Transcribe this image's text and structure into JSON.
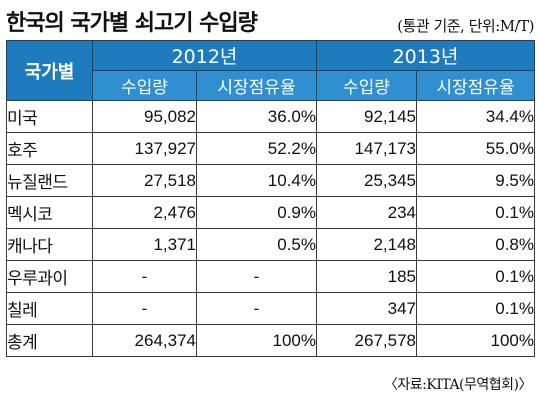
{
  "title": "한국의 국가별 쇠고기 수입량",
  "unit_note": "(통관 기준, 단위:M/T)",
  "header": {
    "country": "국가별",
    "year1": "2012년",
    "year2": "2013년",
    "import_volume": "수입량",
    "market_share": "시장점유율"
  },
  "rows": [
    {
      "country": "미국",
      "v2012": "95,082",
      "s2012": "36.0%",
      "v2013": "92,145",
      "s2013": "34.4%"
    },
    {
      "country": "호주",
      "v2012": "137,927",
      "s2012": "52.2%",
      "v2013": "147,173",
      "s2013": "55.0%"
    },
    {
      "country": "뉴질랜드",
      "v2012": "27,518",
      "s2012": "10.4%",
      "v2013": "25,345",
      "s2013": "9.5%"
    },
    {
      "country": "멕시코",
      "v2012": "2,476",
      "s2012": "0.9%",
      "v2013": "234",
      "s2013": "0.1%"
    },
    {
      "country": "캐나다",
      "v2012": "1,371",
      "s2012": "0.5%",
      "v2013": "2,148",
      "s2013": "0.8%"
    },
    {
      "country": "우루과이",
      "v2012": "-",
      "s2012": "-",
      "v2013": "185",
      "s2013": "0.1%"
    },
    {
      "country": "칠레",
      "v2012": "-",
      "s2012": "-",
      "v2013": "347",
      "s2013": "0.1%"
    },
    {
      "country": "총계",
      "v2012": "264,374",
      "s2012": "100%",
      "v2013": "267,578",
      "s2013": "100%"
    }
  ],
  "source": "〈자료:KITA(무역협회)〉"
}
